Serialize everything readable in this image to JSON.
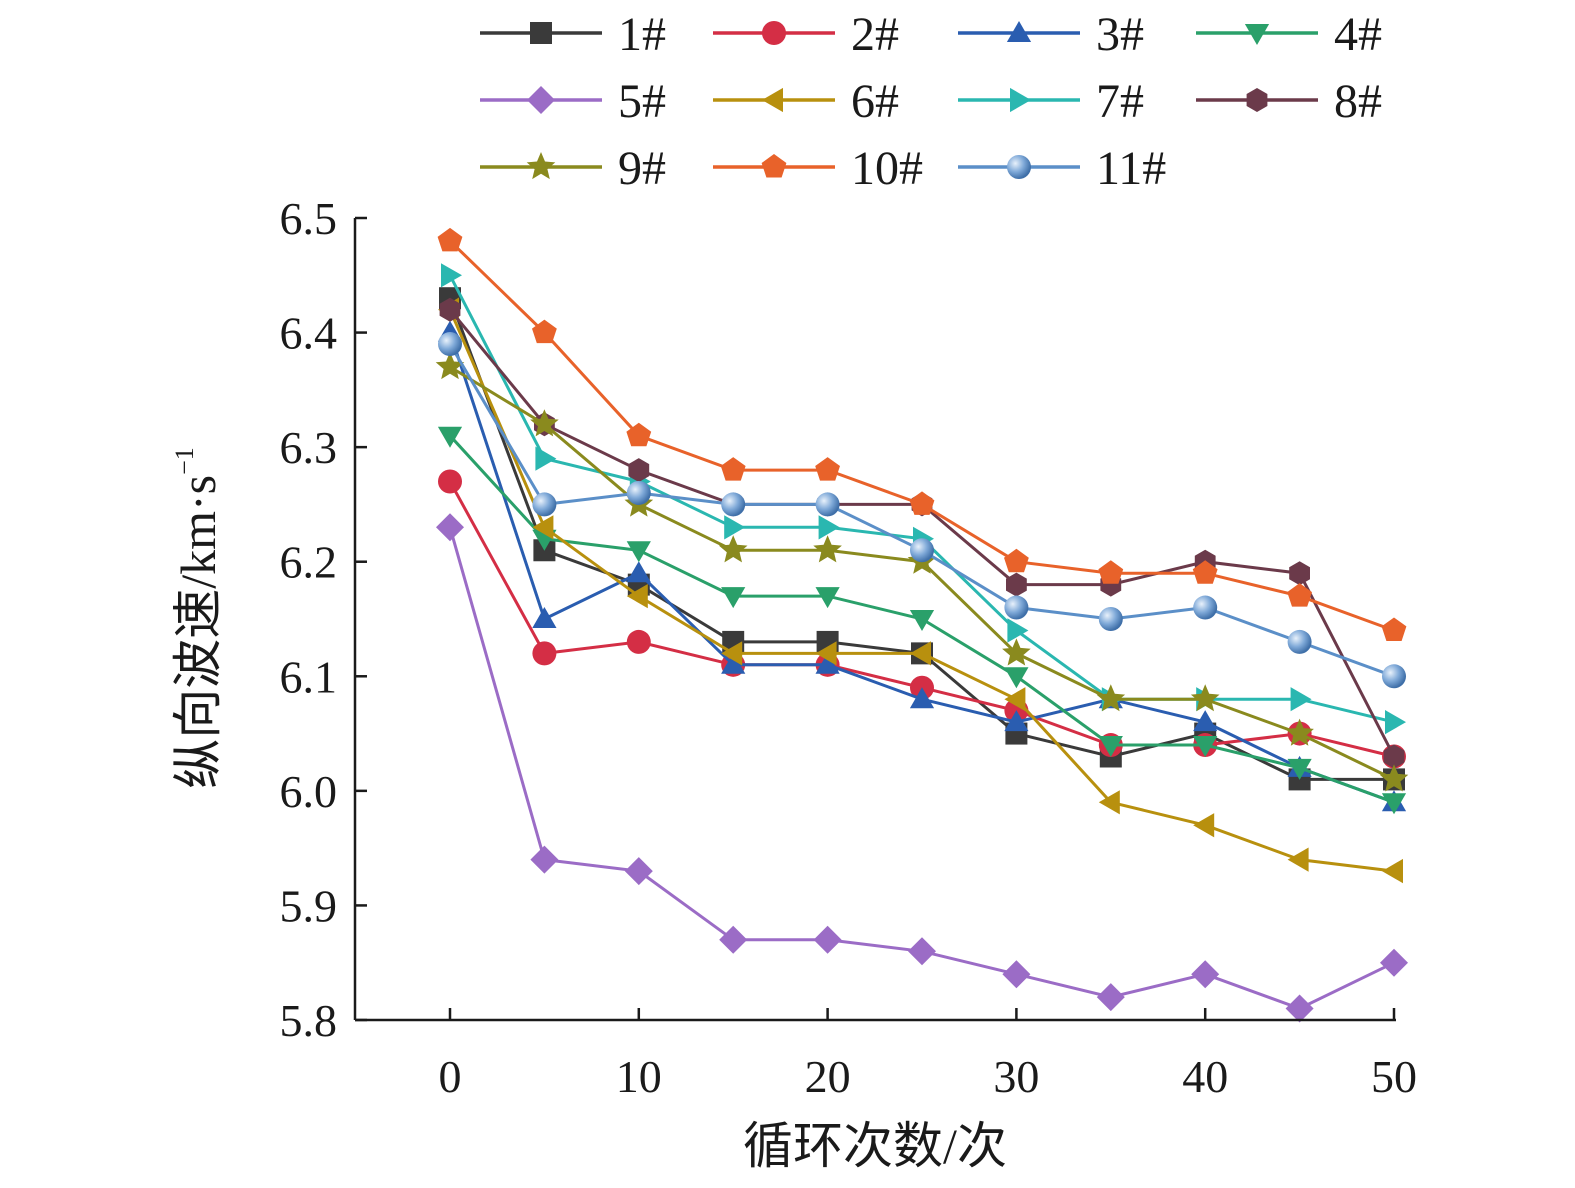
{
  "chart_data": {
    "type": "line",
    "xlabel": "循环次数/次",
    "ylabel_main": "纵向波速/km·s",
    "ylabel_sup": "−1",
    "x": [
      0,
      5,
      10,
      15,
      20,
      25,
      30,
      35,
      40,
      45,
      50
    ],
    "xticks": [
      "0",
      "10",
      "20",
      "30",
      "40",
      "50"
    ],
    "xtick_values": [
      0,
      10,
      20,
      30,
      40,
      50
    ],
    "xlim": [
      -5,
      50
    ],
    "yticks": [
      "5.8",
      "5.9",
      "6.0",
      "6.1",
      "6.2",
      "6.3",
      "6.4",
      "6.5"
    ],
    "ytick_values": [
      5.8,
      5.9,
      6.0,
      6.1,
      6.2,
      6.3,
      6.4,
      6.5
    ],
    "ylim": [
      5.8,
      6.5
    ],
    "grid": false,
    "legend_position": "top",
    "series": [
      {
        "name": "1#",
        "color": "#3a3a3a",
        "marker": "square",
        "values": [
          6.43,
          6.21,
          6.18,
          6.13,
          6.13,
          6.12,
          6.05,
          6.03,
          6.05,
          6.01,
          6.01
        ]
      },
      {
        "name": "2#",
        "color": "#d42e45",
        "marker": "circle",
        "values": [
          6.27,
          6.12,
          6.13,
          6.11,
          6.11,
          6.09,
          6.07,
          6.04,
          6.04,
          6.05,
          6.03
        ]
      },
      {
        "name": "3#",
        "color": "#2a5db0",
        "marker": "triangle-up",
        "values": [
          6.4,
          6.15,
          6.19,
          6.11,
          6.11,
          6.08,
          6.06,
          6.08,
          6.06,
          6.02,
          5.99
        ]
      },
      {
        "name": "4#",
        "color": "#2aa06a",
        "marker": "triangle-down",
        "values": [
          6.31,
          6.22,
          6.21,
          6.17,
          6.17,
          6.15,
          6.1,
          6.04,
          6.04,
          6.02,
          5.99
        ]
      },
      {
        "name": "5#",
        "color": "#9b6cc6",
        "marker": "diamond",
        "values": [
          6.23,
          5.94,
          5.93,
          5.87,
          5.87,
          5.86,
          5.84,
          5.82,
          5.84,
          5.81,
          5.85
        ]
      },
      {
        "name": "6#",
        "color": "#b8900e",
        "marker": "triangle-left",
        "values": [
          6.42,
          6.23,
          6.17,
          6.12,
          6.12,
          6.12,
          6.08,
          5.99,
          5.97,
          5.94,
          5.93
        ]
      },
      {
        "name": "7#",
        "color": "#2ab7b0",
        "marker": "triangle-right",
        "values": [
          6.45,
          6.29,
          6.27,
          6.23,
          6.23,
          6.22,
          6.14,
          6.08,
          6.08,
          6.08,
          6.06
        ]
      },
      {
        "name": "8#",
        "color": "#6b3a4a",
        "marker": "hexagon",
        "values": [
          6.42,
          6.32,
          6.28,
          6.25,
          6.25,
          6.25,
          6.18,
          6.18,
          6.2,
          6.19,
          6.03
        ]
      },
      {
        "name": "9#",
        "color": "#8a8a1e",
        "marker": "star",
        "values": [
          6.37,
          6.32,
          6.25,
          6.21,
          6.21,
          6.2,
          6.12,
          6.08,
          6.08,
          6.05,
          6.01
        ]
      },
      {
        "name": "10#",
        "color": "#e8622a",
        "marker": "pentagon",
        "values": [
          6.48,
          6.4,
          6.31,
          6.28,
          6.28,
          6.25,
          6.2,
          6.19,
          6.19,
          6.17,
          6.14
        ]
      },
      {
        "name": "11#",
        "color": "#5b8fc8",
        "marker": "sphere",
        "values": [
          6.39,
          6.25,
          6.26,
          6.25,
          6.25,
          6.21,
          6.16,
          6.15,
          6.16,
          6.13,
          6.1
        ]
      }
    ]
  }
}
